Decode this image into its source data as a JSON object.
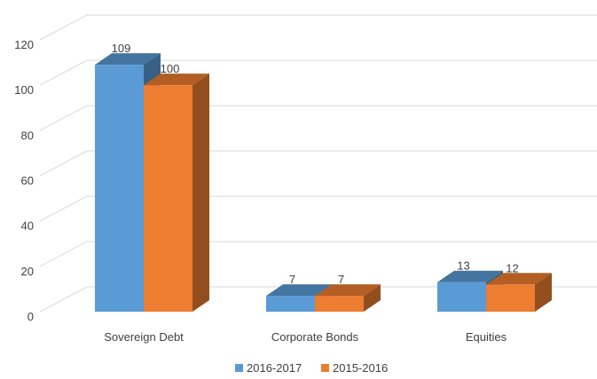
{
  "chart_data": {
    "type": "bar3d",
    "categories": [
      "Sovereign Debt",
      "Corporate Bonds",
      "Equities"
    ],
    "series": [
      {
        "name": "2016-2017",
        "color": "#5b9bd5",
        "values": [
          109,
          7,
          13
        ]
      },
      {
        "name": "2015-2016",
        "color": "#ed7d31",
        "values": [
          100,
          7,
          12
        ]
      }
    ],
    "ylim": [
      0,
      120
    ],
    "yticks": [
      0,
      20,
      40,
      60,
      80,
      100,
      120
    ],
    "grid": true,
    "legend": "bottom"
  }
}
